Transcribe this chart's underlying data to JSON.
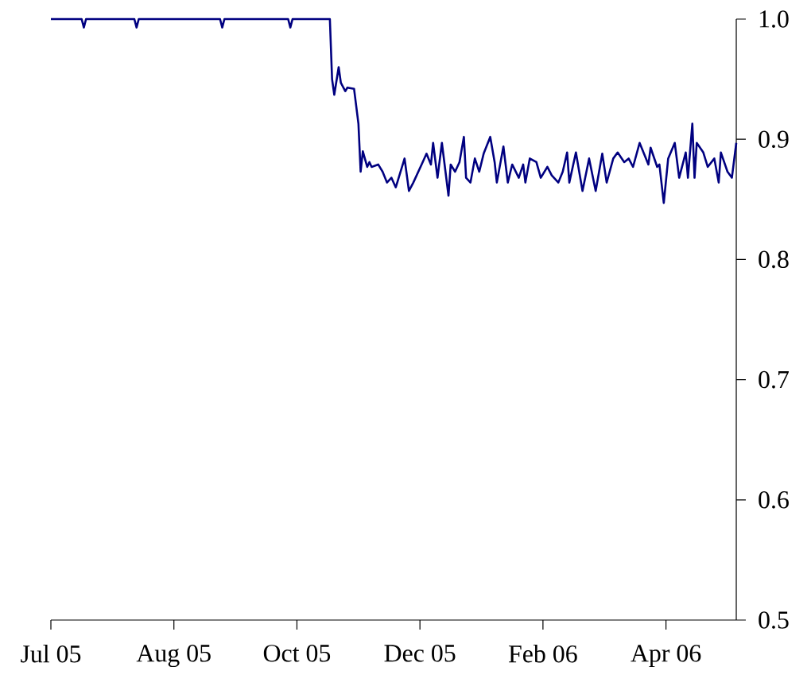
{
  "chart_data": {
    "type": "line",
    "color": "#000080",
    "x": [
      "2005-07-01",
      "2005-07-15",
      "2005-07-16",
      "2005-07-17",
      "2005-08-08",
      "2005-08-09",
      "2005-08-10",
      "2005-09-16",
      "2005-09-17",
      "2005-09-18",
      "2005-10-17",
      "2005-10-18",
      "2005-10-19",
      "2005-11-05",
      "2005-11-06",
      "2005-11-07",
      "2005-11-09",
      "2005-11-10",
      "2005-11-12",
      "2005-11-13",
      "2005-11-16",
      "2005-11-18",
      "2005-11-19",
      "2005-11-20",
      "2005-11-22",
      "2005-11-23",
      "2005-11-24",
      "2005-11-27",
      "2005-11-29",
      "2005-12-01",
      "2005-12-03",
      "2005-12-05",
      "2005-12-06",
      "2005-12-09",
      "2005-12-11",
      "2005-12-13",
      "2005-12-17",
      "2005-12-19",
      "2005-12-21",
      "2005-12-22",
      "2005-12-24",
      "2005-12-26",
      "2005-12-29",
      "2005-12-30",
      "2006-01-01",
      "2006-01-03",
      "2006-01-05",
      "2006-01-06",
      "2006-01-08",
      "2006-01-10",
      "2006-01-12",
      "2006-01-14",
      "2006-01-17",
      "2006-01-19",
      "2006-01-20",
      "2006-01-23",
      "2006-01-25",
      "2006-01-27",
      "2006-01-30",
      "2006-02-01",
      "2006-02-02",
      "2006-02-04",
      "2006-02-07",
      "2006-02-09",
      "2006-02-12",
      "2006-02-14",
      "2006-02-17",
      "2006-02-19",
      "2006-02-21",
      "2006-02-22",
      "2006-02-25",
      "2006-02-28",
      "2006-03-03",
      "2006-03-06",
      "2006-03-09",
      "2006-03-11",
      "2006-03-14",
      "2006-03-16",
      "2006-03-19",
      "2006-03-21",
      "2006-03-23",
      "2006-03-26",
      "2006-03-28",
      "2006-03-30",
      "2006-03-31",
      "2006-04-03",
      "2006-04-04",
      "2006-04-06",
      "2006-04-08",
      "2006-04-11",
      "2006-04-13",
      "2006-04-16",
      "2006-04-17",
      "2006-04-19",
      "2006-04-20",
      "2006-04-21",
      "2006-04-24",
      "2006-04-26",
      "2006-04-29",
      "2006-05-01",
      "2006-05-02",
      "2006-05-05",
      "2006-05-07",
      "2006-05-09"
    ],
    "values": [
      1.0,
      1.0,
      0.993,
      1.0,
      1.0,
      0.993,
      1.0,
      1.0,
      0.993,
      1.0,
      1.0,
      0.993,
      1.0,
      1.0,
      0.95,
      0.937,
      0.96,
      0.947,
      0.94,
      0.943,
      0.942,
      0.913,
      0.873,
      0.89,
      0.877,
      0.881,
      0.877,
      0.879,
      0.873,
      0.864,
      0.868,
      0.86,
      0.866,
      0.884,
      0.857,
      0.864,
      0.88,
      0.888,
      0.879,
      0.897,
      0.868,
      0.897,
      0.853,
      0.879,
      0.873,
      0.881,
      0.902,
      0.868,
      0.864,
      0.884,
      0.873,
      0.888,
      0.902,
      0.881,
      0.864,
      0.894,
      0.864,
      0.879,
      0.868,
      0.879,
      0.864,
      0.884,
      0.881,
      0.868,
      0.877,
      0.87,
      0.864,
      0.873,
      0.889,
      0.864,
      0.889,
      0.857,
      0.884,
      0.857,
      0.888,
      0.864,
      0.884,
      0.889,
      0.881,
      0.884,
      0.877,
      0.897,
      0.888,
      0.879,
      0.893,
      0.877,
      0.879,
      0.847,
      0.884,
      0.897,
      0.868,
      0.889,
      0.868,
      0.913,
      0.868,
      0.897,
      0.889,
      0.877,
      0.884,
      0.864,
      0.889,
      0.873,
      0.868,
      0.897
    ],
    "xlim": [
      "2005-07-01",
      "2006-05-09"
    ],
    "xticks": [
      {
        "value": "2005-07-01",
        "label": "Jul 05"
      },
      {
        "value": "2005-08-26",
        "label": "Aug 05"
      },
      {
        "value": "2005-10-21",
        "label": "Oct 05"
      },
      {
        "value": "2005-12-16",
        "label": "Dec 05"
      },
      {
        "value": "2006-02-10",
        "label": "Feb 06"
      },
      {
        "value": "2006-04-07",
        "label": "Apr 06"
      }
    ],
    "ylim": [
      0.5,
      1.0
    ],
    "yticks": [
      0.5,
      0.6,
      0.7,
      0.8,
      0.9,
      {
        "value": 1.0,
        "label": "1.0"
      }
    ]
  }
}
